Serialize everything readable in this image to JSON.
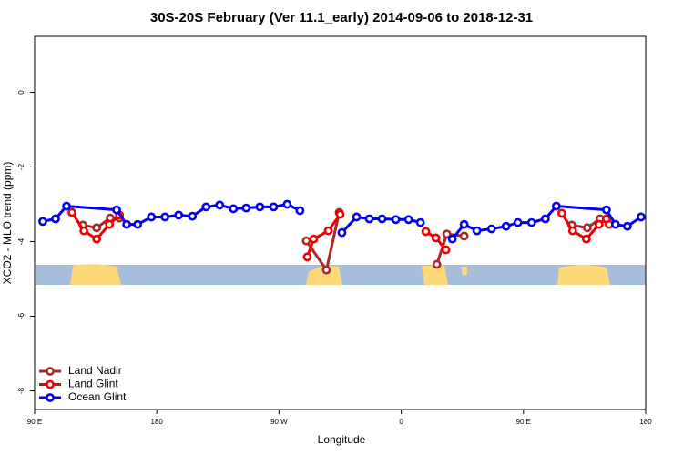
{
  "chart_data": {
    "type": "line",
    "title": "30S-20S February (Ver 11.1_early)   2014-09-06 to 2018-12-31",
    "x_label": "Longitude",
    "y_label": "XCO2 - MLO trend (ppm)",
    "xlim": [
      90,
      540
    ],
    "xticks": [
      {
        "value": 90,
        "label": "90 E"
      },
      180,
      {
        "value": 270,
        "label": "90 W"
      },
      {
        "value": 360,
        "label": "0"
      },
      {
        "value": 450,
        "label": "90 E"
      },
      {
        "value": 540,
        "label": "180"
      }
    ],
    "ylim": [
      -8.5,
      1.5
    ],
    "yticks": [
      0,
      -2,
      -4,
      -6,
      -8
    ],
    "legend": "bottom-left",
    "series": [
      {
        "name": "Land Nadir",
        "color": "#a52a2a",
        "x": [
          125.6,
          135.7,
          145.7,
          152.5,
          null,
          290.1,
          304.9,
          314.3,
          null,
          386.2,
          393.6,
          406.3,
          null,
          485.6,
          497.0,
          506.4,
          513.1
        ],
        "values": [
          -3.56,
          -3.63,
          -3.37,
          -3.37,
          null,
          -3.98,
          -4.76,
          -3.22,
          null,
          -4.61,
          -3.8,
          -3.85,
          null,
          -3.56,
          -3.63,
          -3.39,
          -3.54
        ]
      },
      {
        "name": "Land Glint",
        "color": "#ee0000",
        "x": [
          117.5,
          126.3,
          135.7,
          145.1,
          152.5,
          null,
          290.8,
          295.5,
          306.3,
          315.0,
          null,
          378.1,
          385.5,
          392.9,
          null,
          478.2,
          486.2,
          496.3,
          505.7,
          511.1
        ],
        "values": [
          -3.22,
          -3.71,
          -3.93,
          -3.54,
          -3.29,
          null,
          -4.41,
          -3.93,
          -3.71,
          -3.27,
          null,
          -3.73,
          -3.9,
          -4.22,
          null,
          -3.24,
          -3.71,
          -3.93,
          -3.54,
          -3.39
        ]
      },
      {
        "name": "Ocean Glint",
        "color": "#0000ee",
        "x": [
          96.0,
          105.4,
          113.5,
          150.4,
          157.8,
          165.9,
          176.0,
          186.0,
          196.1,
          206.2,
          216.3,
          226.3,
          236.4,
          245.8,
          255.9,
          266.0,
          276.0,
          285.4,
          null,
          316.3,
          327.1,
          336.5,
          345.9,
          356.0,
          365.4,
          374.1,
          null,
          397.6,
          406.3,
          415.7,
          426.5,
          437.2,
          445.9,
          456.0,
          466.1,
          474.2,
          511.1,
          517.8,
          526.5,
          536.6
        ],
        "values": [
          -3.46,
          -3.39,
          -3.05,
          -3.15,
          -3.54,
          -3.54,
          -3.34,
          -3.34,
          -3.29,
          -3.32,
          -3.07,
          -3.02,
          -3.12,
          -3.1,
          -3.07,
          -3.07,
          -3.0,
          -3.17,
          null,
          -3.76,
          -3.34,
          -3.39,
          -3.39,
          -3.41,
          -3.41,
          -3.49,
          null,
          -3.93,
          -3.54,
          -3.71,
          -3.66,
          -3.59,
          -3.49,
          -3.49,
          -3.39,
          -3.05,
          -3.15,
          -3.54,
          -3.59,
          -3.34
        ]
      }
    ]
  }
}
